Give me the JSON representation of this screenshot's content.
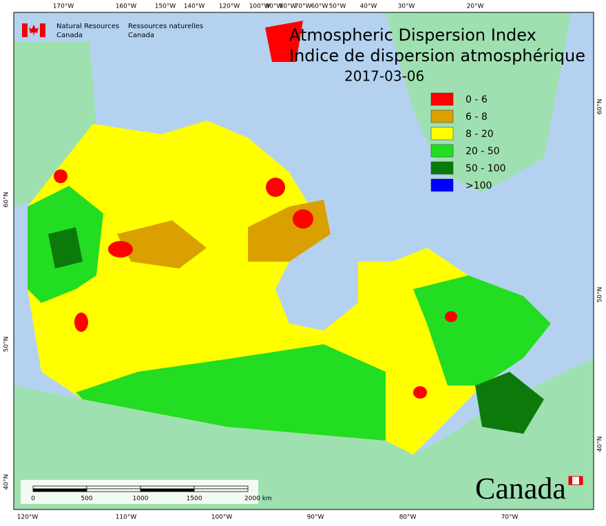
{
  "header": {
    "org_en": [
      "Natural Resources",
      "Canada"
    ],
    "org_fr": [
      "Ressources naturelles",
      "Canada"
    ]
  },
  "title": "Atmospheric Dispersion Index",
  "subtitle": "Indice de dispersion atmosphérique",
  "date": "2017-03-06",
  "legend": [
    {
      "label": "0 - 6",
      "color": "#ff0000"
    },
    {
      "label": "6 - 8",
      "color": "#daa000"
    },
    {
      "label": "8 - 20",
      "color": "#ffff00"
    },
    {
      "label": "20 - 50",
      "color": "#22dd22"
    },
    {
      "label": "50 - 100",
      "color": "#0b7a0b"
    },
    {
      "label": ">100",
      "color": "#0000ff"
    }
  ],
  "top_axis": [
    "170°W",
    "160°W",
    "150°W",
    "140°W",
    "120°W",
    "100°W",
    "90°W",
    "80°W",
    "70°W",
    "60°W",
    "50°W",
    "40°W",
    "30°W",
    "20°W"
  ],
  "bottom_axis": [
    "120°W",
    "110°W",
    "100°W",
    "90°W",
    "80°W",
    "70°W"
  ],
  "left_axis": [
    "60°N",
    "50°N",
    "40°N"
  ],
  "right_axis": [
    "60°N",
    "50°N",
    "40°N"
  ],
  "scale_bar": [
    "0",
    "500",
    "1000",
    "1500",
    "2000 km"
  ],
  "wordmark": "Canada"
}
